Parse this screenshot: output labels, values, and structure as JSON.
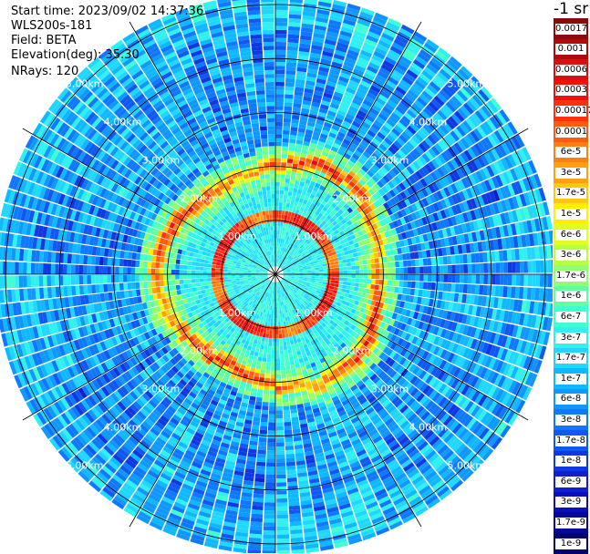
{
  "header": {
    "start_time": "Start time: 2023/09/02 14:37:36",
    "instrument": "WLS200s-181",
    "field": "Field: BETA",
    "elevation": "Elevation(deg): 35.30",
    "nrays": "NRays: 120"
  },
  "colorbar": {
    "title": "-1 sr",
    "levels": [
      {
        "label": "0.0017",
        "color": "#8b0a0a"
      },
      {
        "label": "0.001",
        "color": "#b00a0a"
      },
      {
        "label": "0.0006",
        "color": "#d81010"
      },
      {
        "label": "0.0003",
        "color": "#f01010"
      },
      {
        "label": "0.00017",
        "color": "#ff3010"
      },
      {
        "label": "0.0001",
        "color": "#ff5a10"
      },
      {
        "label": "6e-5",
        "color": "#ff8010"
      },
      {
        "label": "3e-5",
        "color": "#ffa010"
      },
      {
        "label": "1.7e-5",
        "color": "#ffc810"
      },
      {
        "label": "1e-5",
        "color": "#fff000"
      },
      {
        "label": "6e-6",
        "color": "#e0ff20"
      },
      {
        "label": "3e-6",
        "color": "#b8ff40"
      },
      {
        "label": "1.7e-6",
        "color": "#90ff70"
      },
      {
        "label": "1e-6",
        "color": "#60ffa0"
      },
      {
        "label": "6e-7",
        "color": "#40ffd0"
      },
      {
        "label": "3e-7",
        "color": "#30f0f0"
      },
      {
        "label": "1.7e-7",
        "color": "#20d8ff"
      },
      {
        "label": "1e-7",
        "color": "#10b8ff"
      },
      {
        "label": "6e-8",
        "color": "#1098ff"
      },
      {
        "label": "3e-8",
        "color": "#1078ff"
      },
      {
        "label": "1.7e-8",
        "color": "#1058f0"
      },
      {
        "label": "1e-8",
        "color": "#1038e0"
      },
      {
        "label": "6e-9",
        "color": "#1020d0"
      },
      {
        "label": "3e-9",
        "color": "#0c10b8"
      },
      {
        "label": "1.7e-9",
        "color": "#080898"
      },
      {
        "label": "1e-9",
        "color": "#040470"
      }
    ]
  },
  "chart_data": {
    "type": "heatmap",
    "projection": "polar (PPI)",
    "field": "BETA",
    "n_rays": 120,
    "elevation_deg": 35.3,
    "range_rings_km": [
      1,
      2,
      3,
      4,
      5
    ],
    "ring_labels": [
      "1.00km",
      "2.00km",
      "3.00km",
      "4.00km",
      "5.00km"
    ],
    "azimuth_lines_deg": [
      0,
      30,
      60,
      90,
      120,
      150,
      180,
      210,
      240,
      270,
      300,
      330
    ],
    "background_level": "1.7e-8 to 1e-7",
    "aerosol_layer_km": [
      1.9,
      2.2
    ],
    "aerosol_layer_peak": "0.0003",
    "inner_ring_km": [
      1.0,
      1.2
    ],
    "inner_ring_peak": "0.0006",
    "colors": {
      "background": "#1a8cff",
      "grid": "#000000"
    }
  }
}
